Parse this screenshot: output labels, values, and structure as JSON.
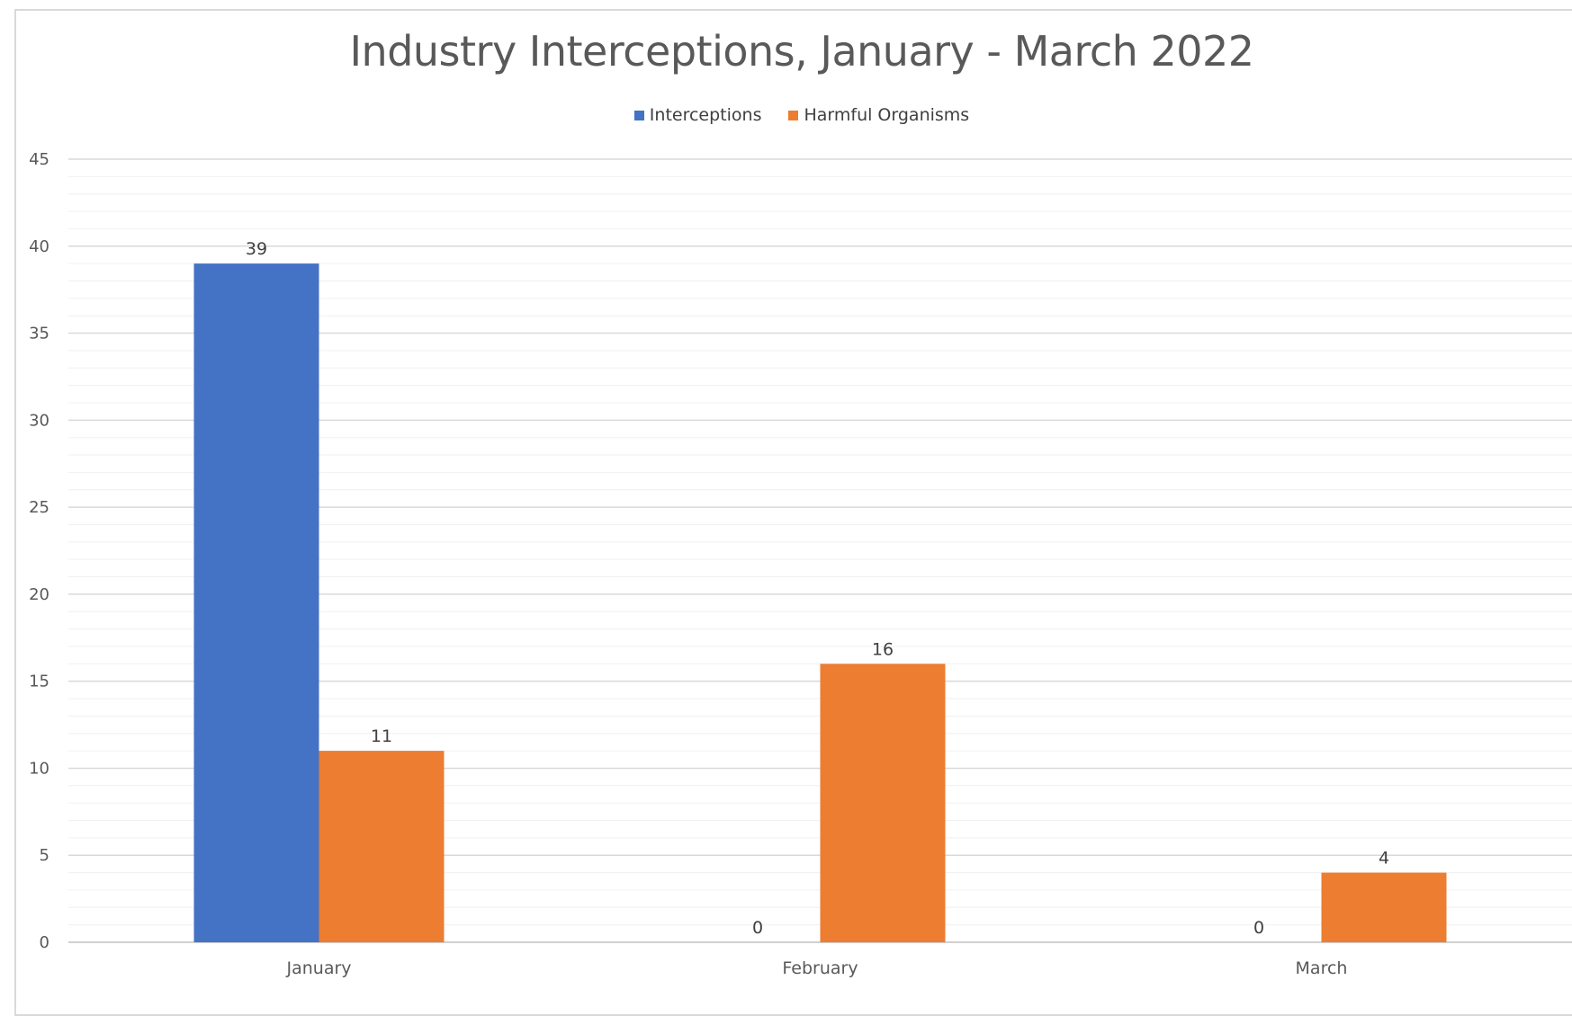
{
  "chart_data": {
    "type": "bar",
    "title": "Industry Interceptions, January - March 2022",
    "categories": [
      "January",
      "February",
      "March"
    ],
    "series": [
      {
        "name": "Interceptions",
        "values": [
          39,
          0,
          0
        ],
        "color": "#4472C4"
      },
      {
        "name": "Harmful Organisms",
        "values": [
          11,
          16,
          4
        ],
        "color": "#ED7D31"
      }
    ],
    "ylim": [
      0,
      45
    ],
    "yticks": [
      0,
      5,
      10,
      15,
      20,
      25,
      30,
      35,
      40,
      45
    ],
    "xlabel": "",
    "ylabel": "",
    "legend_position": "top",
    "grid": true,
    "data_labels": true
  }
}
